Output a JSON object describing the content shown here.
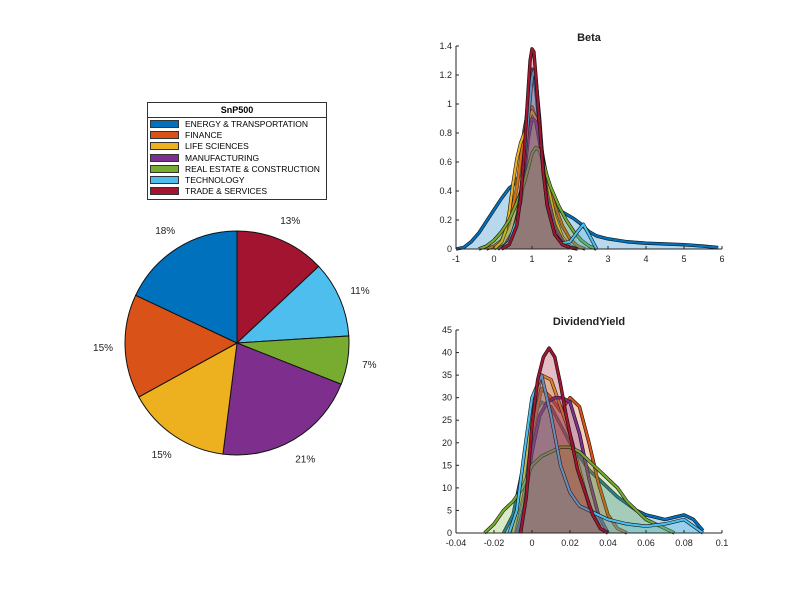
{
  "colors": {
    "energy": "#0072BD",
    "finance": "#D95319",
    "life": "#EDB120",
    "manufacturing": "#7E2F8E",
    "realestate": "#77AC30",
    "technology": "#4DBEEE",
    "trade": "#A2142F"
  },
  "legend": {
    "title": "SnP500",
    "items": [
      {
        "label": "ENERGY & TRANSPORTATION",
        "color": "#0072BD"
      },
      {
        "label": "FINANCE",
        "color": "#D95319"
      },
      {
        "label": "LIFE SCIENCES",
        "color": "#EDB120"
      },
      {
        "label": "MANUFACTURING",
        "color": "#7E2F8E"
      },
      {
        "label": "REAL ESTATE & CONSTRUCTION",
        "color": "#77AC30"
      },
      {
        "label": "TECHNOLOGY",
        "color": "#4DBEEE"
      },
      {
        "label": "TRADE & SERVICES",
        "color": "#A2142F"
      }
    ]
  },
  "chart_data": [
    {
      "type": "pie",
      "title": "",
      "start": "top, clockwise",
      "slices": [
        {
          "category": "TRADE & SERVICES",
          "value": 13,
          "label": "13%",
          "color": "#A2142F"
        },
        {
          "category": "TECHNOLOGY",
          "value": 11,
          "label": "11%",
          "color": "#4DBEEE"
        },
        {
          "category": "REAL ESTATE & CONSTRUCTION",
          "value": 7,
          "label": "7%",
          "color": "#77AC30"
        },
        {
          "category": "MANUFACTURING",
          "value": 21,
          "label": "21%",
          "color": "#7E2F8E"
        },
        {
          "category": "LIFE SCIENCES",
          "value": 15,
          "label": "15%",
          "color": "#EDB120"
        },
        {
          "category": "FINANCE",
          "value": 15,
          "label": "15%",
          "color": "#D95319"
        },
        {
          "category": "ENERGY & TRANSPORTATION",
          "value": 18,
          "label": "18%",
          "color": "#0072BD"
        }
      ]
    },
    {
      "type": "area",
      "title": "Beta",
      "xlim": [
        -1,
        6
      ],
      "ylim": [
        0,
        1.4
      ],
      "xticks": [
        -1,
        0,
        1,
        2,
        3,
        4,
        5,
        6
      ],
      "xtick_labels": [
        "-1",
        "0",
        "1",
        "2",
        "3",
        "4",
        "5",
        "6"
      ],
      "yticks": [
        0,
        0.2,
        0.4,
        0.6,
        0.8,
        1,
        1.2,
        1.4
      ],
      "ytick_labels": [
        "0",
        "0.2",
        "0.4",
        "0.6",
        "0.8",
        "1",
        "1.2",
        "1.4"
      ],
      "series": [
        {
          "name": "ENERGY & TRANSPORTATION",
          "color": "#0072BD",
          "x": [
            -1,
            -0.8,
            -0.6,
            -0.4,
            -0.2,
            0,
            0.2,
            0.4,
            0.5,
            0.7,
            0.8,
            0.9,
            1,
            1.1,
            1.2,
            1.3,
            1.5,
            1.7,
            1.9,
            2.1,
            2.3,
            2.5,
            2.7,
            3,
            3.5,
            4,
            4.5,
            5,
            5.5,
            5.9
          ],
          "y": [
            0,
            0.01,
            0.05,
            0.11,
            0.19,
            0.27,
            0.35,
            0.42,
            0.44,
            0.52,
            0.75,
            1.05,
            1.24,
            1.1,
            0.82,
            0.5,
            0.33,
            0.27,
            0.24,
            0.21,
            0.17,
            0.12,
            0.09,
            0.07,
            0.05,
            0.04,
            0.035,
            0.03,
            0.02,
            0.01
          ]
        },
        {
          "name": "FINANCE",
          "color": "#D95319",
          "x": [
            -0.2,
            0,
            0.2,
            0.4,
            0.6,
            0.7,
            0.8,
            0.9,
            1,
            1.1,
            1.2,
            1.3,
            1.4,
            1.6,
            1.8,
            2,
            2.2,
            2.4
          ],
          "y": [
            0,
            0.02,
            0.06,
            0.18,
            0.42,
            0.62,
            0.83,
            0.96,
            0.98,
            0.9,
            0.78,
            0.62,
            0.48,
            0.3,
            0.16,
            0.07,
            0.02,
            0
          ]
        },
        {
          "name": "LIFE SCIENCES",
          "color": "#EDB120",
          "x": [
            0,
            0.2,
            0.3,
            0.4,
            0.5,
            0.6,
            0.7,
            0.8,
            0.9,
            1,
            1.1,
            1.2,
            1.4,
            1.6,
            1.8,
            2,
            2.2
          ],
          "y": [
            0,
            0.05,
            0.12,
            0.25,
            0.45,
            0.62,
            0.73,
            0.8,
            0.88,
            0.95,
            0.9,
            0.74,
            0.46,
            0.22,
            0.08,
            0.02,
            0
          ]
        },
        {
          "name": "MANUFACTURING",
          "color": "#7E2F8E",
          "x": [
            0.1,
            0.3,
            0.5,
            0.7,
            0.8,
            0.9,
            1,
            1.1,
            1.2,
            1.3,
            1.4,
            1.6,
            1.8,
            2,
            2.2
          ],
          "y": [
            0,
            0.03,
            0.12,
            0.32,
            0.52,
            0.76,
            0.9,
            0.88,
            0.74,
            0.55,
            0.38,
            0.16,
            0.06,
            0.01,
            0
          ]
        },
        {
          "name": "REAL ESTATE & CONSTRUCTION",
          "color": "#77AC30",
          "x": [
            -0.4,
            -0.2,
            0,
            0.2,
            0.4,
            0.6,
            0.8,
            1,
            1.1,
            1.2,
            1.3,
            1.4,
            1.5,
            1.7,
            1.9,
            2.1,
            2.3,
            2.5,
            2.7
          ],
          "y": [
            0,
            0.02,
            0.06,
            0.12,
            0.2,
            0.32,
            0.46,
            0.66,
            0.7,
            0.68,
            0.6,
            0.5,
            0.42,
            0.3,
            0.2,
            0.12,
            0.06,
            0.02,
            0
          ]
        },
        {
          "name": "TECHNOLOGY",
          "color": "#4DBEEE",
          "x": [
            0.2,
            0.4,
            0.6,
            0.7,
            0.8,
            0.9,
            1,
            1.05,
            1.1,
            1.2,
            1.3,
            1.4,
            1.6,
            1.8,
            2,
            2.2,
            2.35,
            2.5,
            2.7
          ],
          "y": [
            0,
            0.05,
            0.2,
            0.38,
            0.6,
            0.9,
            1.18,
            1.23,
            1.18,
            0.9,
            0.55,
            0.3,
            0.1,
            0.04,
            0.05,
            0.12,
            0.17,
            0.1,
            0
          ]
        },
        {
          "name": "TRADE & SERVICES",
          "color": "#A2142F",
          "x": [
            0.2,
            0.4,
            0.6,
            0.7,
            0.8,
            0.9,
            0.95,
            1,
            1.05,
            1.1,
            1.2,
            1.3,
            1.4,
            1.6,
            1.8,
            2,
            2.2
          ],
          "y": [
            0,
            0.03,
            0.16,
            0.35,
            0.68,
            1.1,
            1.3,
            1.38,
            1.36,
            1.2,
            0.85,
            0.52,
            0.3,
            0.1,
            0.03,
            0.01,
            0
          ]
        }
      ]
    },
    {
      "type": "area",
      "title": "DividendYield",
      "xlim": [
        -0.04,
        0.1
      ],
      "ylim": [
        0,
        45
      ],
      "xticks": [
        -0.04,
        -0.02,
        0,
        0.02,
        0.04,
        0.06,
        0.08,
        0.1
      ],
      "xtick_labels": [
        "-0.04",
        "-0.02",
        "0",
        "0.02",
        "0.04",
        "0.06",
        "0.08",
        "0.1"
      ],
      "yticks": [
        0,
        5,
        10,
        15,
        20,
        25,
        30,
        35,
        40,
        45
      ],
      "ytick_labels": [
        "0",
        "5",
        "10",
        "15",
        "20",
        "25",
        "30",
        "35",
        "40",
        "45"
      ],
      "series": [
        {
          "name": "ENERGY & TRANSPORTATION",
          "color": "#0072BD",
          "x": [
            -0.015,
            -0.01,
            -0.005,
            0,
            0.005,
            0.01,
            0.015,
            0.02,
            0.025,
            0.03,
            0.035,
            0.04,
            0.045,
            0.05,
            0.055,
            0.06,
            0.065,
            0.07,
            0.075,
            0.08,
            0.085,
            0.09
          ],
          "y": [
            0,
            4,
            14,
            26,
            29,
            28,
            24,
            20,
            17,
            14,
            12,
            10,
            8,
            6.5,
            5,
            4,
            3.5,
            3,
            3.5,
            4,
            3,
            0.5
          ]
        },
        {
          "name": "FINANCE",
          "color": "#D95319",
          "x": [
            -0.01,
            -0.005,
            0,
            0.005,
            0.01,
            0.015,
            0.02,
            0.025,
            0.03,
            0.035,
            0.04,
            0.045,
            0.05
          ],
          "y": [
            0,
            8,
            22,
            32,
            30,
            27,
            30,
            28,
            20,
            11,
            4,
            1,
            0
          ]
        },
        {
          "name": "LIFE SCIENCES",
          "color": "#EDB120",
          "x": [
            -0.01,
            -0.005,
            0,
            0.005,
            0.01,
            0.015,
            0.02,
            0.025,
            0.03,
            0.035,
            0.04
          ],
          "y": [
            0,
            10,
            26,
            35,
            34,
            28,
            22,
            14,
            6,
            2,
            0
          ]
        },
        {
          "name": "MANUFACTURING",
          "color": "#7E2F8E",
          "x": [
            -0.008,
            -0.004,
            0,
            0.004,
            0.008,
            0.012,
            0.016,
            0.02,
            0.025,
            0.03,
            0.035,
            0.04
          ],
          "y": [
            0,
            6,
            18,
            26,
            29,
            30,
            30,
            29,
            22,
            12,
            4,
            0
          ]
        },
        {
          "name": "REAL ESTATE & CONSTRUCTION",
          "color": "#77AC30",
          "x": [
            -0.025,
            -0.02,
            -0.015,
            -0.01,
            -0.005,
            0,
            0.005,
            0.01,
            0.015,
            0.02,
            0.025,
            0.03,
            0.035,
            0.04,
            0.045,
            0.05,
            0.055,
            0.06,
            0.065,
            0.07,
            0.075
          ],
          "y": [
            0,
            2,
            5,
            7,
            10,
            15,
            17,
            18,
            19,
            19,
            18,
            16,
            14,
            12,
            10,
            7,
            5,
            3,
            2,
            1,
            0
          ]
        },
        {
          "name": "TECHNOLOGY",
          "color": "#4DBEEE",
          "x": [
            -0.012,
            -0.008,
            -0.004,
            0,
            0.005,
            0.01,
            0.015,
            0.02,
            0.025,
            0.03,
            0.035,
            0.04,
            0.05,
            0.06,
            0.07,
            0.08,
            0.09
          ],
          "y": [
            0,
            5,
            18,
            30,
            35,
            26,
            15,
            9,
            6,
            5,
            4,
            3,
            2,
            1.5,
            2,
            3,
            0
          ]
        },
        {
          "name": "TRADE & SERVICES",
          "color": "#A2142F",
          "x": [
            -0.006,
            -0.003,
            0,
            0.003,
            0.006,
            0.009,
            0.012,
            0.015,
            0.018,
            0.021,
            0.024,
            0.028,
            0.032,
            0.036,
            0.04
          ],
          "y": [
            0,
            8,
            24,
            34,
            39,
            41,
            39,
            33,
            26,
            20,
            14,
            9,
            4,
            1,
            0
          ]
        }
      ]
    }
  ]
}
